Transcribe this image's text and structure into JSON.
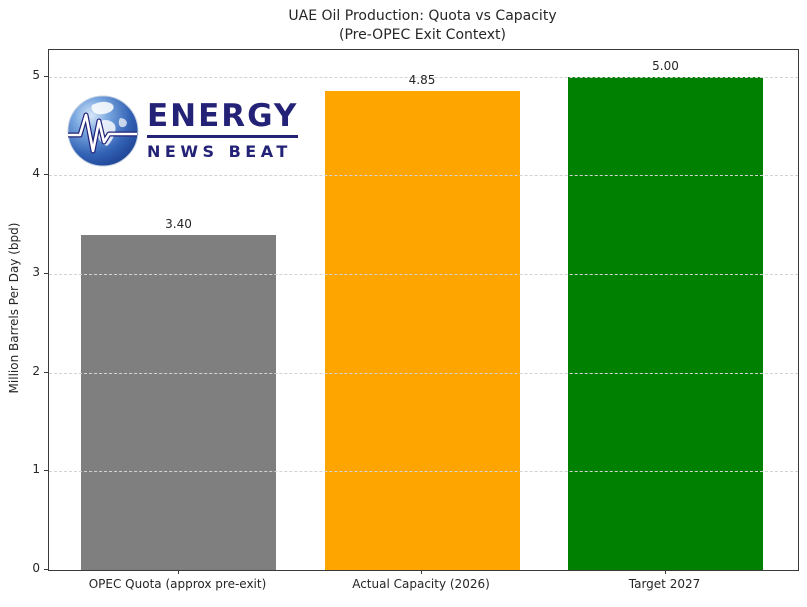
{
  "title": {
    "line1": "UAE Oil Production: Quota vs Capacity",
    "line2": "(Pre-OPEC Exit Context)"
  },
  "logo": {
    "name": "Energy News Beat",
    "line1": "ENERGY",
    "line2": "NEWS BEAT",
    "navy": "#232277",
    "globe_blue": "#3a6fc0"
  },
  "chart_data": {
    "type": "bar",
    "title": "UAE Oil Production: Quota vs Capacity (Pre-OPEC Exit Context)",
    "categories": [
      "OPEC Quota (approx pre-exit)",
      "Actual Capacity (2026)",
      "Target 2027"
    ],
    "values": [
      3.4,
      4.85,
      5.0
    ],
    "value_labels": [
      "3.40",
      "4.85",
      "5.00"
    ],
    "bar_colors": [
      "#7f7f7f",
      "#ffa500",
      "#008000"
    ],
    "xlabel": "",
    "ylabel": "Million Barrels Per Day (bpd)",
    "ylim": [
      0,
      5.27
    ],
    "yticks": [
      0,
      1,
      2,
      3,
      4,
      5
    ],
    "grid": "horizontal-dashed",
    "grid_color": "#d3d3d3",
    "legend": "none"
  }
}
